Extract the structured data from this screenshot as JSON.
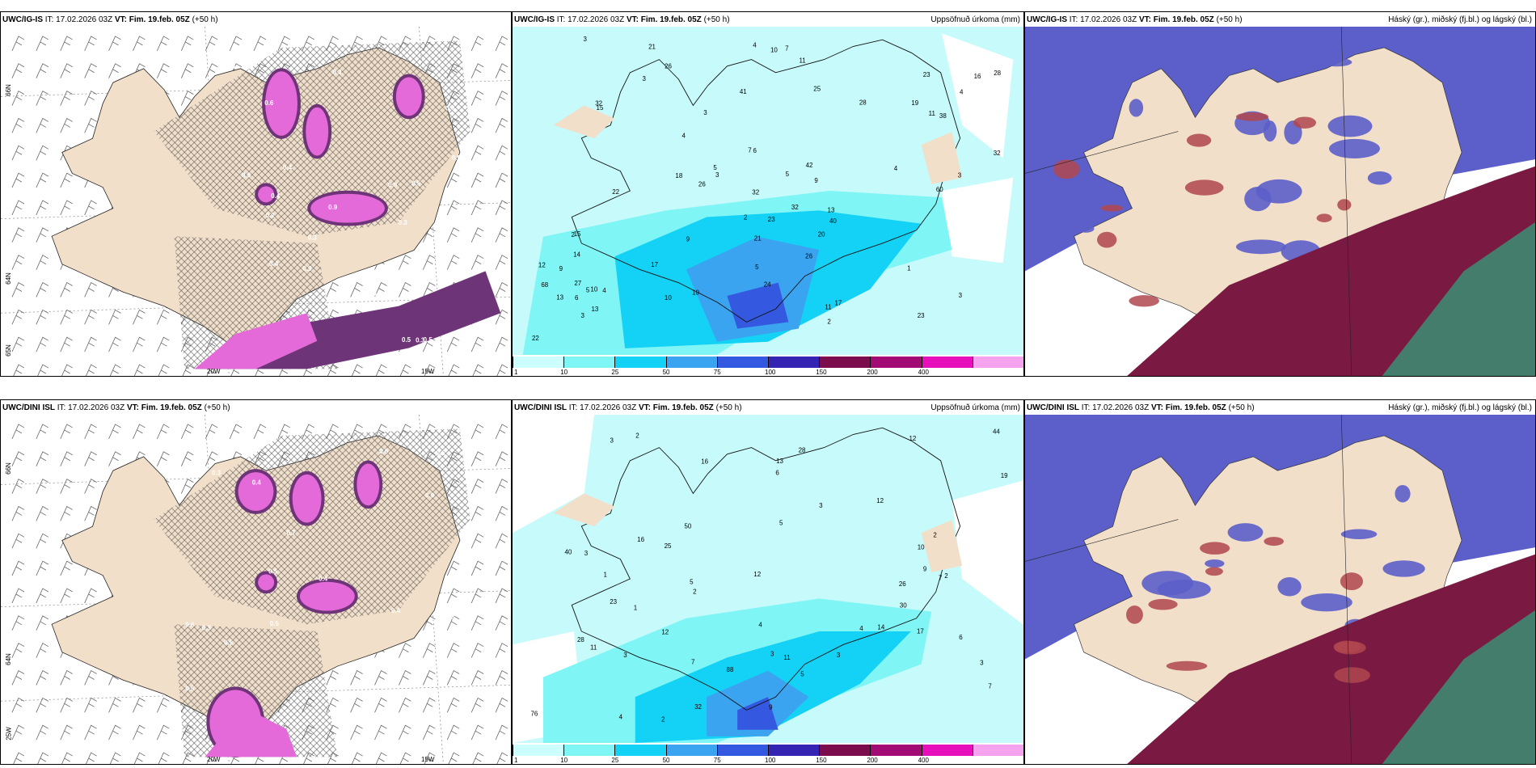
{
  "rows": [
    {
      "model": "UWC/IG-IS",
      "panels": [
        {
          "type": "snow",
          "model": "UWC/IG-IS",
          "it": "IT: 17.02.2026 03Z",
          "vt_prefix": "VT:",
          "vt": "Fim. 19.feb. 05Z",
          "lead": "(+50 h)",
          "right": ""
        },
        {
          "type": "precip",
          "model": "UWC/IG-IS",
          "it": "IT: 17.02.2026 03Z",
          "vt_prefix": "VT:",
          "vt": "Fim. 19.feb. 05Z",
          "lead": "(+50 h)",
          "right": "Uppsöfnuð úrkoma (mm)"
        },
        {
          "type": "cloud",
          "model": "UWC/IG-IS",
          "it": "IT: 17.02.2026 03Z",
          "vt_prefix": "VT:",
          "vt": "Fim. 19.feb. 05Z",
          "lead": "(+50 h)",
          "right": "Háský (gr.), miðský (fj.bl.) og lágský (bl.)"
        }
      ],
      "precip_numbers": [
        "3",
        "3",
        "3",
        "23",
        "14",
        "15",
        "9",
        "10",
        "9",
        "16",
        "19",
        "26",
        "32",
        "28",
        "10",
        "11",
        "13",
        "11",
        "7",
        "11",
        "15",
        "5",
        "4",
        "7",
        "2",
        "3",
        "17",
        "13",
        "26",
        "23",
        "32",
        "21",
        "24",
        "21",
        "26",
        "25",
        "23",
        "22",
        "32",
        "40",
        "27",
        "41",
        "32",
        "22",
        "60",
        "38",
        "42",
        "68",
        "13",
        "17",
        "18",
        "20",
        "28",
        "12",
        "10",
        "9",
        "10",
        "5",
        "6",
        "2",
        "4",
        "5",
        "3",
        "4",
        "4",
        "4",
        "3",
        "5",
        "1",
        "2",
        "6",
        "3"
      ],
      "snow_numbers": [
        "0.3",
        "0.5",
        "0.4",
        "0.3",
        "0.5",
        "0.6",
        "0.3",
        "0.2",
        "0.4",
        "0.9",
        "0.5",
        "0.3",
        "0.4",
        "0.5",
        "0.4",
        "0.3",
        "0.9",
        "0.5",
        "0.6",
        "0.4",
        "0.3"
      ]
    },
    {
      "model": "UWC/DINI ISL",
      "panels": [
        {
          "type": "snow",
          "model": "UWC/DINI ISL",
          "it": "IT: 17.02.2026 03Z",
          "vt_prefix": "VT:",
          "vt": "Fim. 19.feb. 05Z",
          "lead": "(+50 h)",
          "right": ""
        },
        {
          "type": "precip",
          "model": "UWC/DINI ISL",
          "it": "IT: 17.02.2026 03Z",
          "vt_prefix": "VT:",
          "vt": "Fim. 19.feb. 05Z",
          "lead": "(+50 h)",
          "right": "Uppsöfnuð úrkoma (mm)"
        },
        {
          "type": "cloud",
          "model": "UWC/DINI ISL",
          "it": "IT: 17.02.2026 03Z",
          "vt_prefix": "VT:",
          "vt": "Fim. 19.feb. 05Z",
          "lead": "(+50 h)",
          "right": "Háský (gr.), miðský (fj.bl.) og lágský (bl.)"
        }
      ],
      "precip_numbers": [
        "2",
        "4",
        "5",
        "7",
        "6",
        "12",
        "23",
        "19",
        "26",
        "28",
        "25",
        "17",
        "12",
        "11",
        "3",
        "3",
        "7",
        "4",
        "2",
        "12",
        "3",
        "13",
        "12",
        "11",
        "7",
        "3",
        "5",
        "9",
        "1",
        "3",
        "4",
        "2",
        "10",
        "16",
        "32",
        "30",
        "40",
        "28",
        "14",
        "16",
        "50",
        "76",
        "88",
        "44",
        "3",
        "5",
        "9",
        "2",
        "1",
        "2",
        "3",
        "6"
      ],
      "snow_numbers": [
        "0.4",
        "0.6",
        "0.3",
        "0.5",
        "0.4",
        "0.9",
        "0.5",
        "0.3",
        "0.4",
        "0.6",
        "0.5",
        "0.3",
        "0.7",
        "0.4",
        "0.5",
        "0.6",
        "0.4"
      ]
    }
  ],
  "grid_labels": {
    "lat_66": "66N",
    "lat_64": "64N",
    "lat_65": "65N",
    "lon_25": "25W",
    "lon_20": "20W",
    "lon_15": "15W"
  },
  "legend": {
    "labels": [
      "1",
      "10",
      "25",
      "50",
      "75",
      "100",
      "150",
      "200",
      "400"
    ],
    "colors": [
      "#ccffff",
      "#80f5f5",
      "#14d2f5",
      "#3aa4f0",
      "#3458df",
      "#3524b4",
      "#7b0d4f",
      "#a30b74",
      "#e70fba",
      "#f5a2ef"
    ]
  },
  "colors": {
    "land": "#f1dfca",
    "snow_purple": "#e36ad8",
    "snow_dark": "#6e3478",
    "sea_precip": "#c7fafa",
    "cloud_blue": "#5c5fc9",
    "cloud_red": "#7a1a43",
    "cloud_green": "#3b8f73"
  }
}
